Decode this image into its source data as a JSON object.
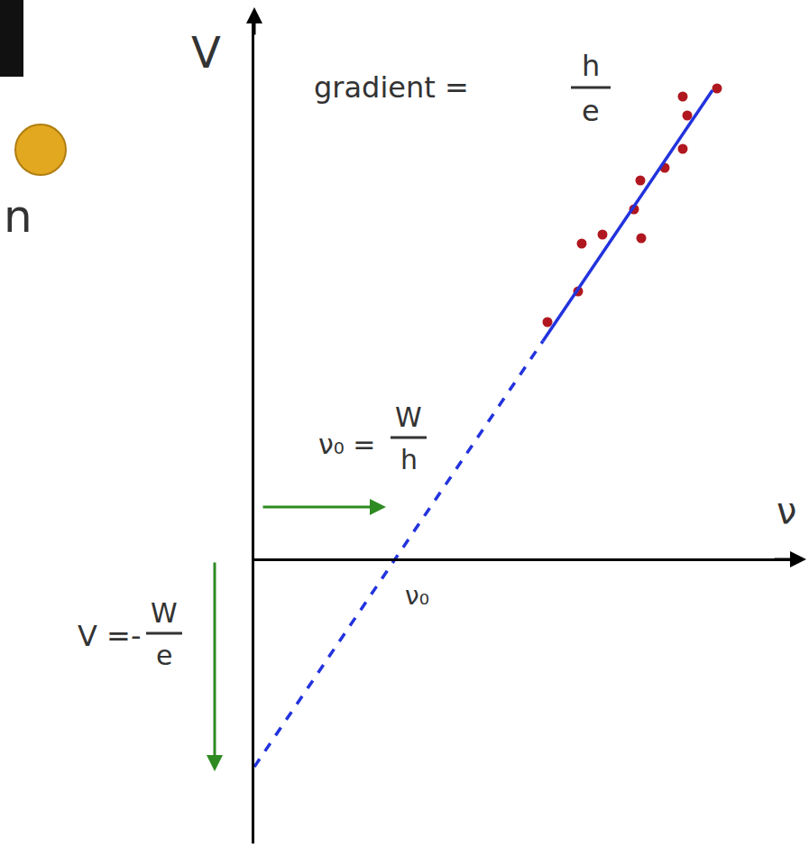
{
  "chart_data": {
    "type": "scatter",
    "xlabel": "ν",
    "ylabel": "V",
    "xlim": [
      0,
      6.0
    ],
    "ylim": [
      -3.15,
      6.05
    ],
    "xticks": [],
    "yticks": [],
    "tick_labels": false,
    "grid": false,
    "series": [
      {
        "type": "scatter",
        "marker": "circle",
        "color": "#b0171f",
        "x": [
          3.25,
          3.59,
          3.63,
          3.86,
          4.21,
          4.28,
          4.29,
          4.55,
          4.75,
          4.75,
          4.8,
          5.13
        ],
        "values": [
          2.63,
          2.97,
          3.5,
          3.6,
          3.88,
          4.2,
          3.56,
          4.34,
          4.55,
          5.13,
          4.92,
          5.22
        ]
      },
      {
        "type": "line",
        "line_style": "dashed",
        "color": "#2233dd",
        "x": [
          0,
          3.2
        ],
        "values": [
          -2.3,
          2.42
        ]
      },
      {
        "type": "line",
        "line_style": "solid",
        "color": "#2233dd",
        "x": [
          3.2,
          5.08
        ],
        "values": [
          2.42,
          5.2
        ]
      }
    ],
    "annotations": [
      {
        "text": "gradient =",
        "fraction": [
          "h",
          "e"
        ]
      },
      {
        "text": "ν₀ =",
        "fraction": [
          "W",
          "h"
        ]
      },
      {
        "text": "V =-",
        "fraction": [
          "W",
          "e"
        ]
      },
      {
        "text": "ν₀"
      },
      {
        "text": "n"
      }
    ]
  }
}
